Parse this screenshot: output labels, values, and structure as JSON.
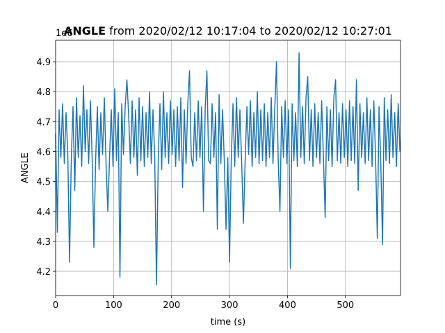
{
  "chart_data": {
    "type": "line",
    "title_bold": "ANGLE",
    "title": "from 2020/02/12 10:17:04 to 2020/02/12 10:27:01",
    "offset_text": "1e6",
    "x_label": "time (s)",
    "y_label": "ANGLE",
    "xlim": [
      0,
      595
    ],
    "ylim": [
      4.119,
      4.972
    ],
    "xticks": [
      0,
      100,
      200,
      300,
      400,
      500
    ],
    "yticks": [
      4.2,
      4.3,
      4.4,
      4.5,
      4.6,
      4.7,
      4.8,
      4.9
    ],
    "grid": true,
    "series": [
      {
        "name": "ANGLE",
        "color": "#1f77b4",
        "x": [
          0,
          3,
          6,
          9,
          12,
          15,
          18,
          21,
          24,
          27,
          30,
          33,
          36,
          39,
          42,
          45,
          48,
          51,
          54,
          57,
          60,
          63,
          66,
          69,
          72,
          75,
          78,
          81,
          84,
          87,
          90,
          93,
          96,
          99,
          102,
          105,
          108,
          111,
          114,
          117,
          120,
          123,
          126,
          129,
          132,
          135,
          138,
          141,
          144,
          147,
          150,
          153,
          156,
          159,
          162,
          165,
          168,
          171,
          174,
          177,
          180,
          183,
          186,
          189,
          192,
          195,
          198,
          201,
          204,
          207,
          210,
          213,
          216,
          219,
          222,
          225,
          228,
          231,
          234,
          237,
          240,
          243,
          246,
          249,
          252,
          255,
          258,
          261,
          264,
          267,
          270,
          273,
          276,
          279,
          282,
          285,
          288,
          291,
          294,
          297,
          300,
          303,
          306,
          309,
          312,
          315,
          318,
          321,
          324,
          327,
          330,
          333,
          336,
          339,
          342,
          345,
          348,
          351,
          354,
          357,
          360,
          363,
          366,
          369,
          372,
          375,
          378,
          381,
          384,
          387,
          390,
          393,
          396,
          399,
          402,
          405,
          408,
          411,
          414,
          417,
          420,
          423,
          426,
          429,
          432,
          435,
          438,
          441,
          444,
          447,
          450,
          453,
          456,
          459,
          462,
          465,
          468,
          471,
          474,
          477,
          480,
          483,
          486,
          489,
          492,
          495,
          498,
          501,
          504,
          507,
          510,
          513,
          516,
          519,
          522,
          525,
          528,
          531,
          534,
          537,
          540,
          543,
          546,
          549,
          552,
          555,
          558,
          561,
          564,
          567,
          570,
          573,
          576,
          579,
          582,
          585,
          588,
          591,
          594
        ],
        "values": [
          4.66,
          4.33,
          4.74,
          4.58,
          4.76,
          4.56,
          4.73,
          4.59,
          4.23,
          4.57,
          4.75,
          4.47,
          4.78,
          4.58,
          4.72,
          4.55,
          4.82,
          4.6,
          4.74,
          4.56,
          4.77,
          4.58,
          4.28,
          4.57,
          4.75,
          4.54,
          4.73,
          4.59,
          4.78,
          4.56,
          4.4,
          4.58,
          4.74,
          4.55,
          4.81,
          4.57,
          4.73,
          4.18,
          4.76,
          4.59,
          4.75,
          4.84,
          4.72,
          4.56,
          4.77,
          4.58,
          4.74,
          4.52,
          4.78,
          4.57,
          4.75,
          4.55,
          4.73,
          4.58,
          4.8,
          4.56,
          4.74,
          4.58,
          4.155,
          4.57,
          4.76,
          4.54,
          4.8,
          4.58,
          4.73,
          4.56,
          4.77,
          4.59,
          4.74,
          4.55,
          4.75,
          4.57,
          4.78,
          4.48,
          4.74,
          4.56,
          4.76,
          4.87,
          4.58,
          4.55,
          4.73,
          4.57,
          4.77,
          4.58,
          4.75,
          4.4,
          4.74,
          4.87,
          4.57,
          4.56,
          4.76,
          4.58,
          4.73,
          4.34,
          4.79,
          4.56,
          4.74,
          4.57,
          4.34,
          4.58,
          4.23,
          4.57,
          4.76,
          4.55,
          4.78,
          4.58,
          4.74,
          4.56,
          4.36,
          4.57,
          4.75,
          4.59,
          4.77,
          4.55,
          4.73,
          4.58,
          4.8,
          4.56,
          4.74,
          4.57,
          4.76,
          4.55,
          4.73,
          4.58,
          4.78,
          4.56,
          4.74,
          4.9,
          4.57,
          4.4,
          4.75,
          4.58,
          4.77,
          4.56,
          4.74,
          4.21,
          4.76,
          4.57,
          4.73,
          4.55,
          4.93,
          4.58,
          4.75,
          4.56,
          4.78,
          4.85,
          4.57,
          4.74,
          4.55,
          4.76,
          4.58,
          4.73,
          4.56,
          4.77,
          4.58,
          4.38,
          4.75,
          4.57,
          4.74,
          4.55,
          4.78,
          4.84,
          4.57,
          4.73,
          4.56,
          4.76,
          4.58,
          4.74,
          4.55,
          4.77,
          4.57,
          4.75,
          4.56,
          4.84,
          4.47,
          4.76,
          4.58,
          4.73,
          4.56,
          4.78,
          4.57,
          4.74,
          4.55,
          4.77,
          4.58,
          4.31,
          4.75,
          4.56,
          4.29,
          4.78,
          4.57,
          4.74,
          4.56,
          4.79,
          4.58,
          4.73,
          4.55,
          4.76,
          4.6
        ]
      }
    ]
  }
}
